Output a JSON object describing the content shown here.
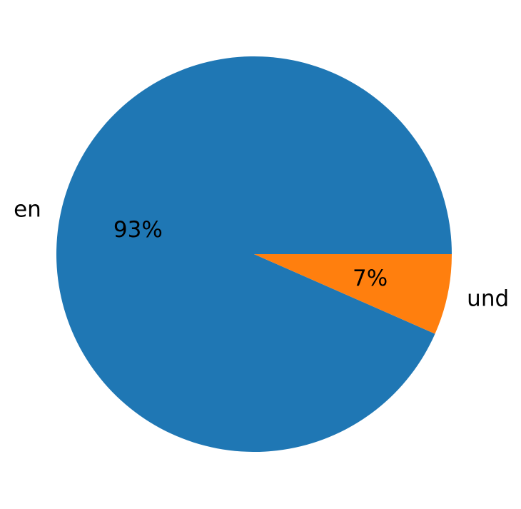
{
  "chart_data": {
    "type": "pie",
    "title": "",
    "labels": [
      "en",
      "und"
    ],
    "values": [
      93.4,
      6.6
    ],
    "pct_labels": [
      "93%",
      "7%"
    ],
    "colors": [
      "#1f77b4",
      "#ff7f0e"
    ],
    "start_angle_deg": 0,
    "direction": "counterclockwise"
  }
}
